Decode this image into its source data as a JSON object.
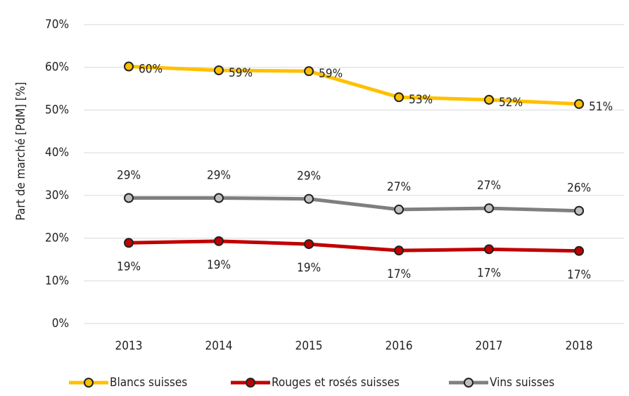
{
  "chart_data": {
    "type": "line",
    "y_label": "Part de marché [PdM] [%]",
    "categories": [
      "2013",
      "2014",
      "2015",
      "2016",
      "2017",
      "2018"
    ],
    "series": [
      {
        "name": "Blancs suisses",
        "color": "#FFC000",
        "marker_fill": "#FFC000",
        "label_position": "right",
        "values": [
          60.2,
          59.3,
          59.1,
          53.0,
          52.4,
          51.4
        ],
        "value_labels": [
          "60%",
          "59%",
          "59%",
          "53%",
          "52%",
          "51%"
        ]
      },
      {
        "name": "Rouges et rosés suisses",
        "color": "#C00000",
        "marker_fill": "#C00000",
        "label_position": "below",
        "values": [
          18.9,
          19.3,
          18.6,
          17.1,
          17.4,
          17.0
        ],
        "value_labels": [
          "19%",
          "19%",
          "19%",
          "17%",
          "17%",
          "17%"
        ]
      },
      {
        "name": "Vins suisses",
        "color": "#7F7F7F",
        "marker_fill": "#BFBFBF",
        "label_position": "above",
        "values": [
          29.4,
          29.4,
          29.2,
          26.7,
          27.0,
          26.4
        ],
        "value_labels": [
          "29%",
          "29%",
          "29%",
          "27%",
          "27%",
          "26%"
        ]
      }
    ],
    "ylim": [
      0,
      70
    ],
    "yticks": [
      {
        "value": 0,
        "label": "0%"
      },
      {
        "value": 10,
        "label": "10%"
      },
      {
        "value": 20,
        "label": "20%"
      },
      {
        "value": 30,
        "label": "30%"
      },
      {
        "value": 40,
        "label": "40%"
      },
      {
        "value": 50,
        "label": "50%"
      },
      {
        "value": 60,
        "label": "60%"
      },
      {
        "value": 70,
        "label": "70%"
      }
    ],
    "grid": true
  }
}
